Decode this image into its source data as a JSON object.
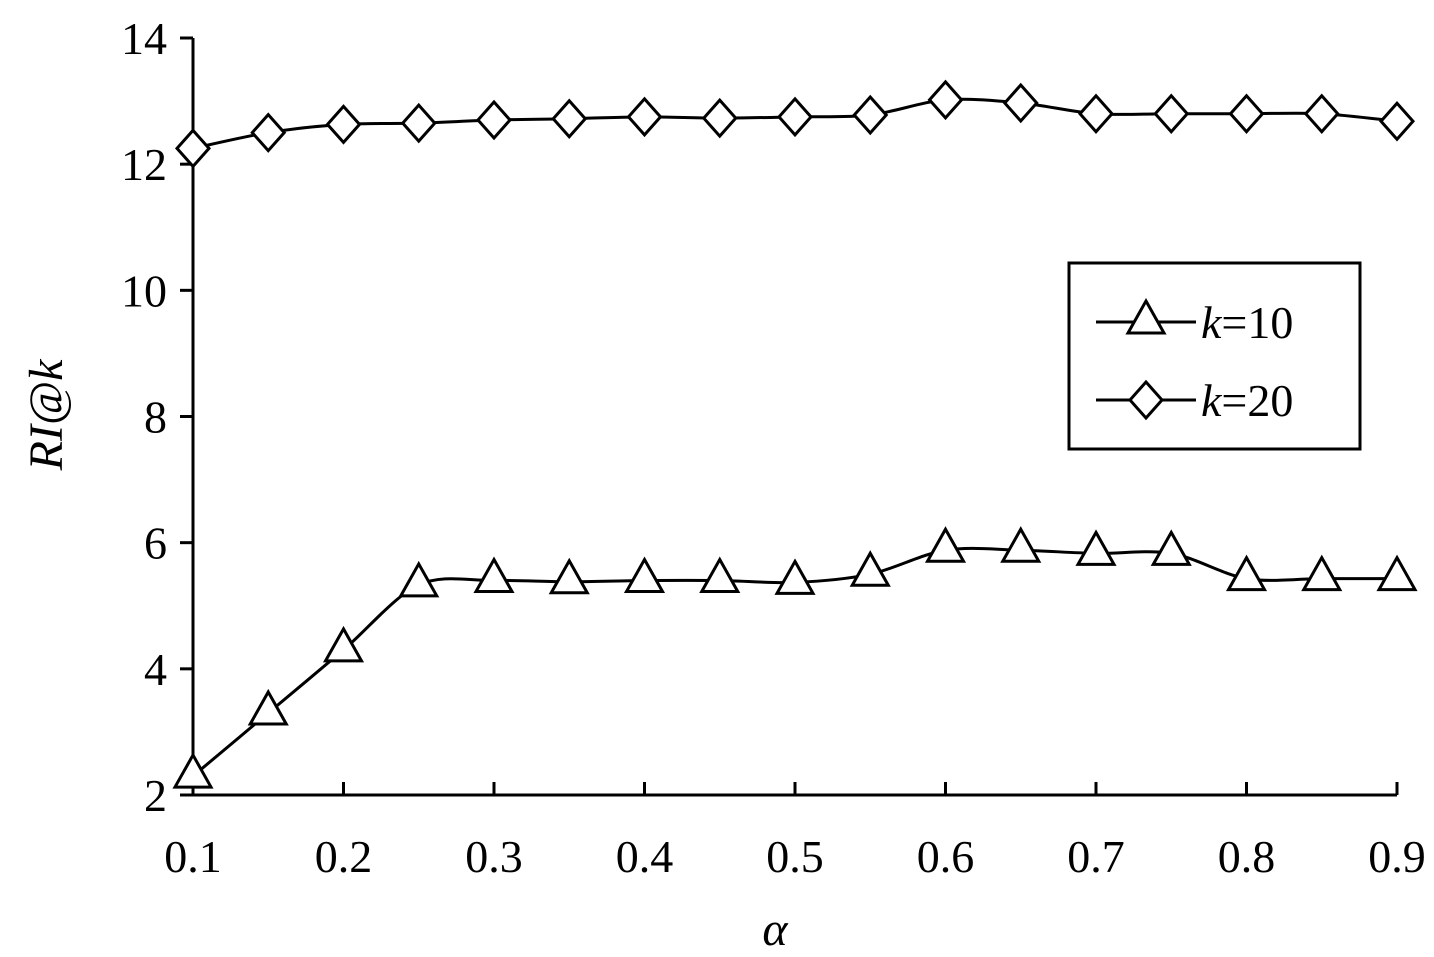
{
  "chart_data": {
    "type": "line",
    "xlabel": "α",
    "ylabel": "RI@k",
    "xlim": [
      0.1,
      0.9
    ],
    "ylim": [
      2,
      14
    ],
    "x_ticks": [
      "0.1",
      "0.2",
      "0.3",
      "0.4",
      "0.5",
      "0.6",
      "0.7",
      "0.8",
      "0.9"
    ],
    "y_ticks": [
      "2",
      "4",
      "6",
      "8",
      "10",
      "12",
      "14"
    ],
    "grid": false,
    "legend_position": "right",
    "x": [
      0.1,
      0.15,
      0.2,
      0.25,
      0.3,
      0.35,
      0.4,
      0.45,
      0.5,
      0.55,
      0.6,
      0.65,
      0.7,
      0.75,
      0.8,
      0.85,
      0.9
    ],
    "series": [
      {
        "name": "k=10",
        "legend_k": "k",
        "legend_rest": "=10",
        "marker": "triangle",
        "values": [
          2.3,
          3.3,
          4.3,
          5.33,
          5.4,
          5.38,
          5.4,
          5.4,
          5.37,
          5.5,
          5.88,
          5.88,
          5.83,
          5.83,
          5.43,
          5.43,
          5.43
        ]
      },
      {
        "name": "k=20",
        "legend_k": "k",
        "legend_rest": "=20",
        "marker": "diamond",
        "values": [
          12.25,
          12.5,
          12.63,
          12.65,
          12.7,
          12.72,
          12.75,
          12.73,
          12.75,
          12.78,
          13.02,
          12.97,
          12.8,
          12.8,
          12.8,
          12.8,
          12.68
        ]
      }
    ]
  }
}
